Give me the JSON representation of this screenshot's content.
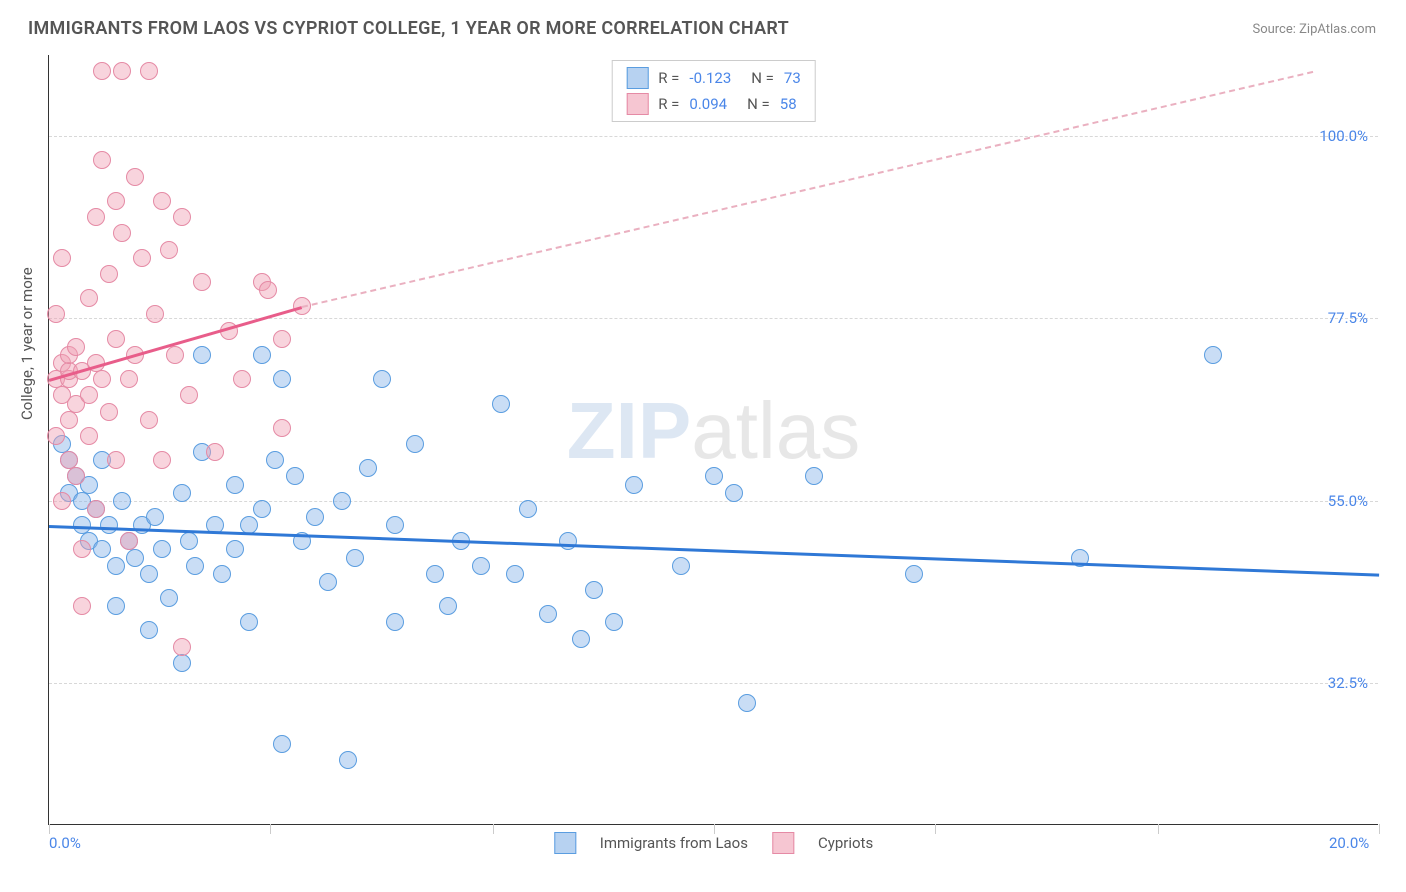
{
  "title": "IMMIGRANTS FROM LAOS VS CYPRIOT COLLEGE, 1 YEAR OR MORE CORRELATION CHART",
  "source": "Source: ZipAtlas.com",
  "watermark": "ZIPatlas",
  "chart": {
    "type": "scatter",
    "ylabel": "College, 1 year or more",
    "xlim": [
      0,
      20
    ],
    "ylim": [
      15,
      110
    ],
    "x_ticks": [
      0,
      3.33,
      6.67,
      10,
      13.33,
      16.67,
      20
    ],
    "x_tick_labels": {
      "0": "0.0%",
      "20": "20.0%"
    },
    "y_gridlines": [
      32.5,
      55.0,
      77.5,
      100.0
    ],
    "y_tick_labels": [
      "32.5%",
      "55.0%",
      "77.5%",
      "100.0%"
    ],
    "background_color": "#ffffff",
    "grid_color": "#d8d8d8",
    "axis_color": "#333333",
    "marker_radius": 9,
    "series": [
      {
        "name": "Immigrants from Laos",
        "color_fill": "rgba(135,180,232,0.45)",
        "color_stroke": "#5a9de0",
        "R": -0.123,
        "N": 73,
        "trend": {
          "x1": 0,
          "y1": 52,
          "x2": 20,
          "y2": 46,
          "color": "#2f78d6",
          "width": 2.5,
          "dashed": false
        },
        "points": [
          [
            0.2,
            62
          ],
          [
            0.3,
            60
          ],
          [
            0.3,
            56
          ],
          [
            0.4,
            58
          ],
          [
            0.5,
            55
          ],
          [
            0.5,
            52
          ],
          [
            0.6,
            57
          ],
          [
            0.6,
            50
          ],
          [
            0.7,
            54
          ],
          [
            0.8,
            60
          ],
          [
            0.8,
            49
          ],
          [
            0.9,
            52
          ],
          [
            1.0,
            47
          ],
          [
            1.0,
            42
          ],
          [
            1.1,
            55
          ],
          [
            1.2,
            50
          ],
          [
            1.3,
            48
          ],
          [
            1.4,
            52
          ],
          [
            1.5,
            39
          ],
          [
            1.5,
            46
          ],
          [
            1.6,
            53
          ],
          [
            1.7,
            49
          ],
          [
            1.8,
            43
          ],
          [
            2.0,
            35
          ],
          [
            2.0,
            56
          ],
          [
            2.1,
            50
          ],
          [
            2.2,
            47
          ],
          [
            2.3,
            73
          ],
          [
            2.3,
            61
          ],
          [
            2.5,
            52
          ],
          [
            2.6,
            46
          ],
          [
            2.8,
            57
          ],
          [
            2.8,
            49
          ],
          [
            3.0,
            52
          ],
          [
            3.0,
            40
          ],
          [
            3.2,
            73
          ],
          [
            3.2,
            54
          ],
          [
            3.4,
            60
          ],
          [
            3.5,
            70
          ],
          [
            3.5,
            25
          ],
          [
            3.7,
            58
          ],
          [
            3.8,
            50
          ],
          [
            4.0,
            53
          ],
          [
            4.2,
            45
          ],
          [
            4.4,
            55
          ],
          [
            4.5,
            23
          ],
          [
            4.6,
            48
          ],
          [
            4.8,
            59
          ],
          [
            5.0,
            70
          ],
          [
            5.2,
            40
          ],
          [
            5.2,
            52
          ],
          [
            5.5,
            62
          ],
          [
            5.8,
            46
          ],
          [
            6.0,
            42
          ],
          [
            6.2,
            50
          ],
          [
            6.5,
            47
          ],
          [
            6.8,
            67
          ],
          [
            7.0,
            46
          ],
          [
            7.2,
            54
          ],
          [
            7.5,
            41
          ],
          [
            7.8,
            50
          ],
          [
            8.0,
            38
          ],
          [
            8.2,
            44
          ],
          [
            8.5,
            40
          ],
          [
            8.8,
            57
          ],
          [
            9.5,
            47
          ],
          [
            10.0,
            58
          ],
          [
            10.3,
            56
          ],
          [
            10.5,
            30
          ],
          [
            11.5,
            58
          ],
          [
            13.0,
            46
          ],
          [
            15.5,
            48
          ],
          [
            17.5,
            73
          ]
        ]
      },
      {
        "name": "Cypriots",
        "color_fill": "rgba(240,160,180,0.45)",
        "color_stroke": "#e58aa5",
        "R": 0.094,
        "N": 58,
        "trend_solid": {
          "x1": 0,
          "y1": 70,
          "x2": 3.8,
          "y2": 79,
          "color": "#e85d8a",
          "width": 2.5
        },
        "trend_dashed": {
          "x1": 3.8,
          "y1": 79,
          "x2": 19,
          "y2": 108,
          "color": "#eab0c0",
          "width": 2
        },
        "points": [
          [
            0.1,
            70
          ],
          [
            0.1,
            63
          ],
          [
            0.1,
            78
          ],
          [
            0.2,
            72
          ],
          [
            0.2,
            68
          ],
          [
            0.2,
            85
          ],
          [
            0.2,
            55
          ],
          [
            0.3,
            70
          ],
          [
            0.3,
            71
          ],
          [
            0.3,
            73
          ],
          [
            0.3,
            65
          ],
          [
            0.3,
            60
          ],
          [
            0.4,
            74
          ],
          [
            0.4,
            67
          ],
          [
            0.4,
            58
          ],
          [
            0.5,
            71
          ],
          [
            0.5,
            49
          ],
          [
            0.5,
            42
          ],
          [
            0.6,
            80
          ],
          [
            0.6,
            68
          ],
          [
            0.6,
            63
          ],
          [
            0.7,
            90
          ],
          [
            0.7,
            72
          ],
          [
            0.7,
            54
          ],
          [
            0.8,
            70
          ],
          [
            0.8,
            108
          ],
          [
            0.8,
            97
          ],
          [
            0.9,
            83
          ],
          [
            0.9,
            66
          ],
          [
            1.0,
            92
          ],
          [
            1.0,
            75
          ],
          [
            1.0,
            60
          ],
          [
            1.1,
            108
          ],
          [
            1.1,
            88
          ],
          [
            1.2,
            70
          ],
          [
            1.2,
            50
          ],
          [
            1.3,
            95
          ],
          [
            1.3,
            73
          ],
          [
            1.4,
            85
          ],
          [
            1.5,
            65
          ],
          [
            1.5,
            108
          ],
          [
            1.6,
            78
          ],
          [
            1.7,
            92
          ],
          [
            1.7,
            60
          ],
          [
            1.8,
            86
          ],
          [
            1.9,
            73
          ],
          [
            2.0,
            90
          ],
          [
            2.0,
            37
          ],
          [
            2.1,
            68
          ],
          [
            2.3,
            82
          ],
          [
            2.5,
            61
          ],
          [
            2.7,
            76
          ],
          [
            2.9,
            70
          ],
          [
            3.2,
            82
          ],
          [
            3.3,
            81
          ],
          [
            3.5,
            75
          ],
          [
            3.5,
            64
          ],
          [
            3.8,
            79
          ]
        ]
      }
    ],
    "legend_box_labels": {
      "R": "R =",
      "N": "N ="
    },
    "bottom_legend": [
      "Immigrants from Laos",
      "Cypriots"
    ]
  }
}
